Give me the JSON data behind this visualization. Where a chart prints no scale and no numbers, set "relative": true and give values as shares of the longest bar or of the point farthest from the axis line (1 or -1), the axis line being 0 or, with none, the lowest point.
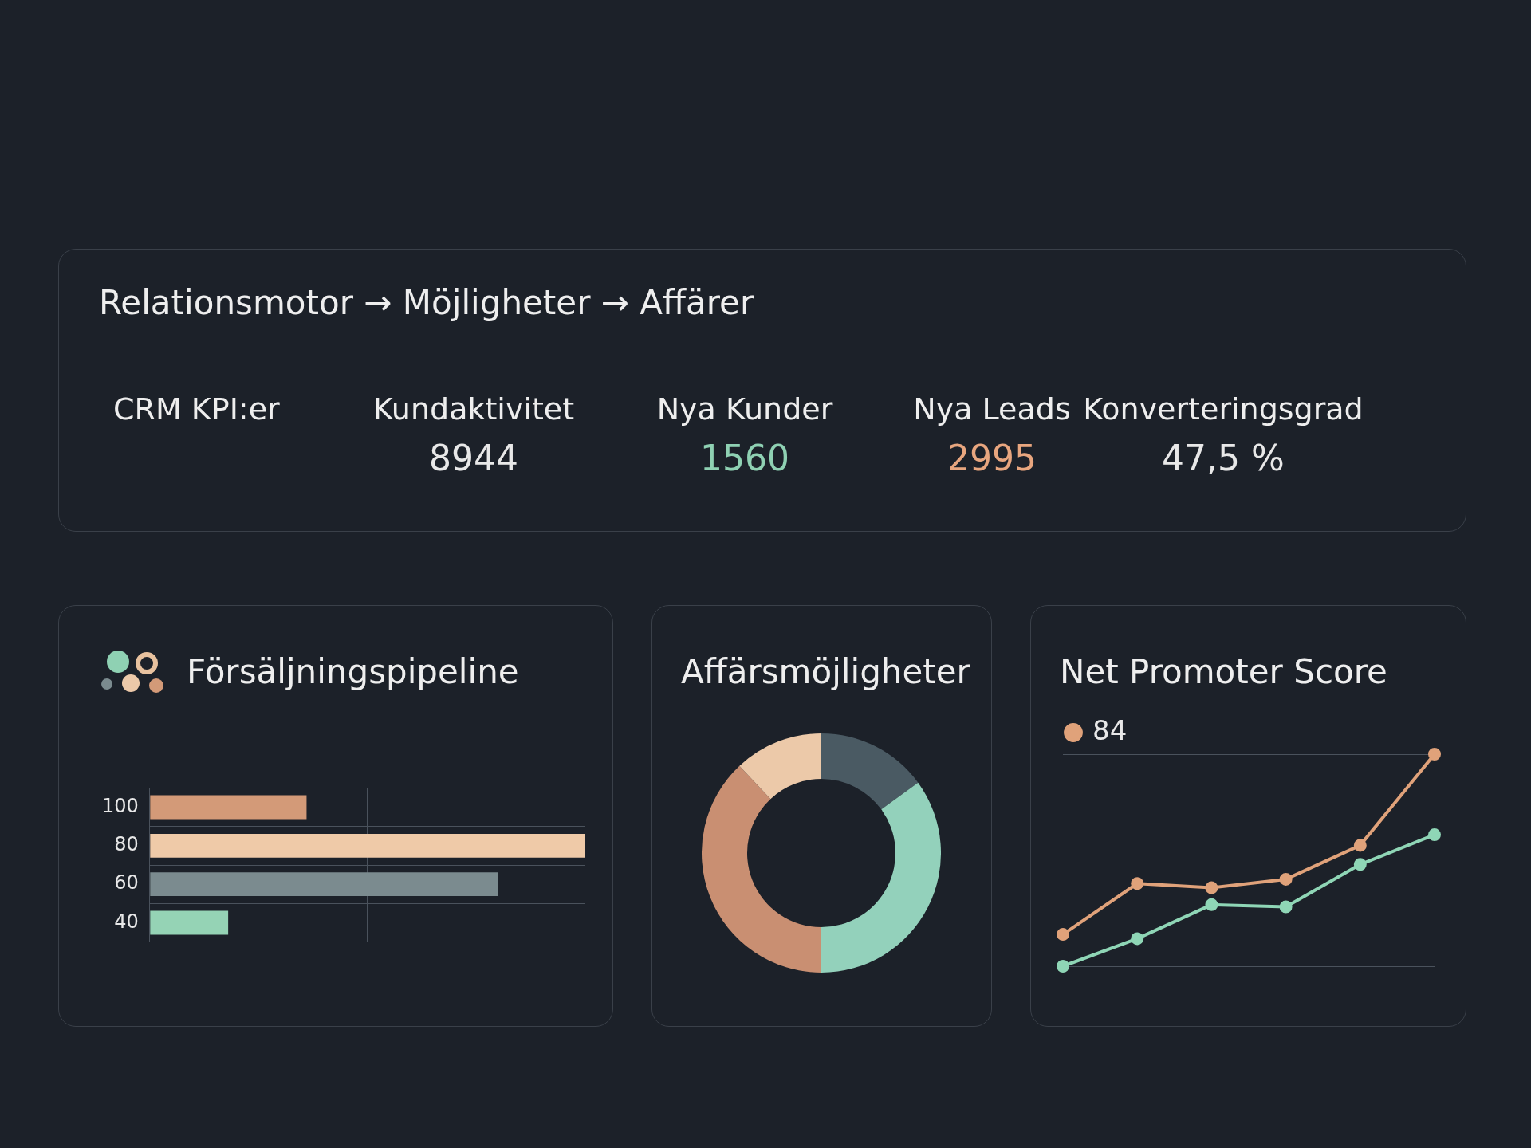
{
  "chart_data": [
    {
      "type": "other",
      "title": "Relationsmotor → Möjligheter → Affärer",
      "subtitle": "CRM KPI:er",
      "categories": [
        "Kundaktivitet",
        "Nya Kunder",
        "Nya Leads",
        "Konverteringsgrad"
      ],
      "value_labels": [
        "8944",
        "1560",
        "2995",
        "47,5 %"
      ]
    },
    {
      "type": "bar",
      "title": "Försäljningspipeline",
      "orientation": "horizontal",
      "relative": true,
      "grid": true,
      "categories": [
        "100",
        "80",
        "60",
        "40"
      ],
      "values": [
        0.36,
        1,
        0.8,
        0.18
      ],
      "colors": [
        "#d39a78",
        "#efcaa8",
        "#7b8b8f",
        "#95d3b5"
      ]
    },
    {
      "type": "donut",
      "title": "Affärsmöjligheter",
      "categories": [
        null,
        null,
        null,
        null
      ],
      "values": [
        15,
        35,
        38,
        12
      ],
      "colors": [
        "#4a5a63",
        "#93d1bb",
        "#c98f72",
        "#ecc9a9"
      ]
    },
    {
      "type": "line",
      "title": "Net Promoter Score",
      "relative": true,
      "grid": "y",
      "legend": "top left",
      "marker": "circle",
      "categories": [
        null,
        null,
        null,
        null,
        null,
        null
      ],
      "series": [
        {
          "name": "84",
          "color": "#e0a27a",
          "values": [
            0.15,
            0.39,
            0.37,
            0.41,
            0.57,
            1
          ]
        },
        {
          "color": "#8fd6b6",
          "values": [
            0,
            0.13,
            0.29,
            0.28,
            0.48,
            0.62
          ]
        }
      ]
    }
  ]
}
